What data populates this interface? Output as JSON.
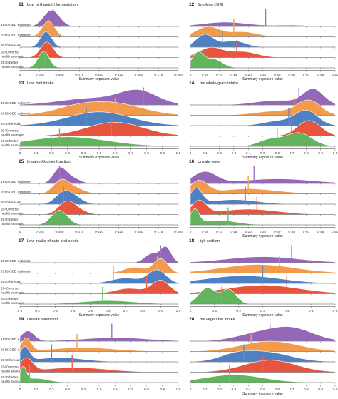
{
  "colors": {
    "1990 GBD estimate": "#9467b8",
    "2016 GBD estimate": "#f39b4d",
    "2040 forecast": "#4f81c2",
    "2040 worse health scenario": "#e8553f",
    "2040 better health scenario": "#62b55c"
  },
  "row_labels": [
    [
      "1990 GBD estimate"
    ],
    [
      "2016 GBD estimate"
    ],
    [
      "2040 forecast"
    ],
    [
      "2040 worse",
      "health scenario"
    ],
    [
      "2040 better",
      "health scenario"
    ]
  ],
  "chart_data": [
    {
      "num": "11",
      "title": "Low birthweight for gestation",
      "type": "ridgeline",
      "xlabel": "Summary exposure value",
      "xticks": [
        "0",
        "0·025",
        "0·050",
        "0·075",
        "0·100",
        "0·125",
        "0·150",
        "0·175",
        "0·200"
      ],
      "xlim": [
        0,
        0.2
      ],
      "x_label_shown": true,
      "series": [
        {
          "name": "1990 GBD estimate",
          "peaks": [
            [
              0.04,
              0.01,
              1
            ]
          ],
          "amp": 0.95,
          "marker": 0.042
        },
        {
          "name": "2016 GBD estimate",
          "peaks": [
            [
              0.036,
              0.008,
              1
            ]
          ],
          "amp": 0.9,
          "marker": 0.036
        },
        {
          "name": "2040 forecast",
          "peaks": [
            [
              0.033,
              0.007,
              1
            ]
          ],
          "amp": 0.9,
          "marker": 0.033
        },
        {
          "name": "2040 worse health scenario",
          "peaks": [
            [
              0.034,
              0.008,
              1
            ]
          ],
          "amp": 0.9,
          "marker": 0.035
        },
        {
          "name": "2040 better health scenario",
          "peaks": [
            [
              0.03,
              0.007,
              1
            ]
          ],
          "amp": 0.95,
          "marker": 0.031
        }
      ]
    },
    {
      "num": "12",
      "title": "Smoking (SIR)",
      "type": "ridgeline",
      "xlabel": "Summary exposure value",
      "xticks": [
        "0",
        "0·05",
        "0·10",
        "0·15",
        "0·20",
        "0·25",
        "0·30",
        "0·35",
        "0·40",
        "0·45",
        "0·50"
      ],
      "xlim": [
        0,
        0.5
      ],
      "x_label_shown": true,
      "series": [
        {
          "name": "1990 GBD estimate",
          "peaks": [
            [
              0.12,
              0.08,
              1
            ],
            [
              0.35,
              0.06,
              0.3
            ]
          ],
          "amp": 0.25,
          "marker": 0.26
        },
        {
          "name": "2016 GBD estimate",
          "peaks": [
            [
              0.06,
              0.04,
              1
            ],
            [
              0.18,
              0.05,
              0.5
            ]
          ],
          "amp": 0.6,
          "marker": 0.15
        },
        {
          "name": "2040 forecast",
          "peaks": [
            [
              0.05,
              0.03,
              1
            ],
            [
              0.15,
              0.04,
              0.5
            ]
          ],
          "amp": 0.75,
          "marker": 0.11
        },
        {
          "name": "2040 worse health scenario",
          "peaks": [
            [
              0.07,
              0.04,
              1
            ],
            [
              0.18,
              0.05,
              0.6
            ]
          ],
          "amp": 0.6,
          "marker": 0.16
        },
        {
          "name": "2040 better health scenario",
          "peaks": [
            [
              0.025,
              0.02,
              1
            ],
            [
              0.08,
              0.03,
              0.6
            ]
          ],
          "amp": 0.95,
          "marker": 0.05
        }
      ]
    },
    {
      "num": "13",
      "title": "Low fruit intake",
      "type": "ridgeline",
      "xlabel": "Summary exposure value",
      "xticks": [
        "0",
        "0·1",
        "0·2",
        "0·3",
        "0·4",
        "0·5",
        "0·6",
        "0·7",
        "0·8",
        "0·9",
        "1·0"
      ],
      "xlim": [
        0,
        1
      ],
      "x_label_shown": true,
      "series": [
        {
          "name": "1990 GBD estimate",
          "peaks": [
            [
              0.75,
              0.12,
              1
            ],
            [
              0.45,
              0.2,
              0.5
            ]
          ],
          "amp": 0.9,
          "marker": 0.78
        },
        {
          "name": "2016 GBD estimate",
          "peaks": [
            [
              0.6,
              0.18,
              1
            ],
            [
              0.35,
              0.15,
              0.6
            ]
          ],
          "amp": 0.8,
          "marker": 0.6
        },
        {
          "name": "2040 forecast",
          "peaks": [
            [
              0.5,
              0.2,
              1
            ]
          ],
          "amp": 0.8,
          "marker": 0.42
        },
        {
          "name": "2040 worse health scenario",
          "peaks": [
            [
              0.6,
              0.18,
              1
            ]
          ],
          "amp": 0.8,
          "marker": 0.58
        },
        {
          "name": "2040 better health scenario",
          "peaks": [
            [
              0.3,
              0.25,
              1
            ]
          ],
          "amp": 0.55,
          "marker": 0.25
        }
      ]
    },
    {
      "num": "14",
      "title": "Low whole-grain intake",
      "type": "ridgeline",
      "xlabel": "Summary exposure value",
      "xticks": [
        "0",
        "0·1",
        "0·2",
        "0·3",
        "0·4",
        "0·5",
        "0·6",
        "0·7",
        "0·8",
        "0·9",
        "1·0"
      ],
      "xlim": [
        0,
        1
      ],
      "x_label_shown": true,
      "series": [
        {
          "name": "1990 GBD estimate",
          "peaks": [
            [
              0.85,
              0.07,
              1
            ],
            [
              0.6,
              0.15,
              0.3
            ]
          ],
          "amp": 0.95,
          "marker": 0.75
        },
        {
          "name": "2016 GBD estimate",
          "peaks": [
            [
              0.82,
              0.08,
              1
            ],
            [
              0.6,
              0.15,
              0.3
            ]
          ],
          "amp": 0.9,
          "marker": 0.72
        },
        {
          "name": "2040 forecast",
          "peaks": [
            [
              0.8,
              0.08,
              1
            ],
            [
              0.6,
              0.1,
              0.3
            ]
          ],
          "amp": 0.9,
          "marker": 0.68
        },
        {
          "name": "2040 worse health scenario",
          "peaks": [
            [
              0.82,
              0.08,
              1
            ]
          ],
          "amp": 0.9,
          "marker": 0.7
        },
        {
          "name": "2040 better health scenario",
          "peaks": [
            [
              0.75,
              0.09,
              1
            ],
            [
              0.55,
              0.08,
              0.5
            ]
          ],
          "amp": 0.8,
          "marker": 0.6
        }
      ]
    },
    {
      "num": "15",
      "title": "Impaired kidney function",
      "type": "ridgeline",
      "xlabel": "Summary exposure value",
      "xticks": [
        "0",
        "0·025",
        "0·050",
        "0·075",
        "0·100",
        "0·125",
        "0·150",
        "0·175",
        "0·200"
      ],
      "xlim": [
        0,
        0.2
      ],
      "x_label_shown": false,
      "series": [
        {
          "name": "1990 GBD estimate",
          "peaks": [
            [
              0.05,
              0.008,
              1
            ],
            [
              0.065,
              0.01,
              0.4
            ]
          ],
          "amp": 0.95,
          "marker": 0.05
        },
        {
          "name": "2016 GBD estimate",
          "peaks": [
            [
              0.052,
              0.01,
              1
            ],
            [
              0.07,
              0.012,
              0.4
            ]
          ],
          "amp": 0.85,
          "marker": 0.052
        },
        {
          "name": "2040 forecast",
          "peaks": [
            [
              0.055,
              0.01,
              1
            ],
            [
              0.07,
              0.01,
              0.5
            ]
          ],
          "amp": 0.8,
          "marker": 0.055
        },
        {
          "name": "2040 worse health scenario",
          "peaks": [
            [
              0.058,
              0.01,
              1
            ],
            [
              0.07,
              0.012,
              0.5
            ]
          ],
          "amp": 0.8,
          "marker": 0.058
        },
        {
          "name": "2040 better health scenario",
          "peaks": [
            [
              0.05,
              0.01,
              1
            ]
          ],
          "amp": 0.85,
          "marker": 0.048
        }
      ]
    },
    {
      "num": "16",
      "title": "Unsafe water",
      "type": "ridgeline",
      "xlabel": "Summary exposure value",
      "xticks": [
        "0",
        "0·05",
        "0·10",
        "0·15",
        "0·20",
        "0·25",
        "0·30",
        "0·35",
        "0·40",
        "0·45",
        "0·50"
      ],
      "xlim": [
        0,
        0.5
      ],
      "x_label_shown": true,
      "series": [
        {
          "name": "1990 GBD estimate",
          "peaks": [
            [
              0.05,
              0.04,
              1
            ],
            [
              0.3,
              0.12,
              0.4
            ]
          ],
          "amp": 0.7,
          "marker": 0.22
        },
        {
          "name": "2016 GBD estimate",
          "peaks": [
            [
              0.03,
              0.03,
              1
            ],
            [
              0.2,
              0.1,
              0.4
            ]
          ],
          "amp": 0.8,
          "marker": 0.2
        },
        {
          "name": "2040 forecast",
          "peaks": [
            [
              0.02,
              0.02,
              1
            ],
            [
              0.15,
              0.08,
              0.3
            ]
          ],
          "amp": 0.95,
          "marker": 0.19
        },
        {
          "name": "2040 worse health scenario",
          "peaks": [
            [
              0.03,
              0.025,
              1
            ],
            [
              0.2,
              0.1,
              0.4
            ]
          ],
          "amp": 0.85,
          "marker": 0.23
        },
        {
          "name": "2040 better health scenario",
          "peaks": [
            [
              0.015,
              0.015,
              1
            ],
            [
              0.1,
              0.06,
              0.3
            ]
          ],
          "amp": 0.95,
          "marker": 0.13
        }
      ]
    },
    {
      "num": "17",
      "title": "Low intake of nuts and seeds",
      "type": "ridgeline",
      "xlabel": "Summary exposure value",
      "xticks": [
        "0·1",
        "0·2",
        "0·3",
        "0·4",
        "0·5",
        "0·6",
        "0·7",
        "0·8",
        "0·9",
        "1·0"
      ],
      "xlim": [
        0.1,
        1
      ],
      "x_label_shown": true,
      "series": [
        {
          "name": "1990 GBD estimate",
          "peaks": [
            [
              0.93,
              0.03,
              1
            ],
            [
              0.85,
              0.04,
              0.6
            ]
          ],
          "amp": 0.95,
          "marker": 0.9
        },
        {
          "name": "2016 GBD estimate",
          "peaks": [
            [
              0.9,
              0.04,
              1
            ],
            [
              0.75,
              0.06,
              0.4
            ]
          ],
          "amp": 0.85,
          "marker": 0.88
        },
        {
          "name": "2040 forecast",
          "peaks": [
            [
              0.88,
              0.05,
              1
            ],
            [
              0.7,
              0.08,
              0.4
            ]
          ],
          "amp": 0.8,
          "marker": 0.63
        },
        {
          "name": "2040 worse health scenario",
          "peaks": [
            [
              0.9,
              0.05,
              1
            ],
            [
              0.72,
              0.08,
              0.4
            ]
          ],
          "amp": 0.8,
          "marker": 0.82
        },
        {
          "name": "2040 better health scenario",
          "peaks": [
            [
              0.6,
              0.15,
              1
            ]
          ],
          "amp": 0.2,
          "marker": 0.57
        }
      ]
    },
    {
      "num": "18",
      "title": "High sodium",
      "type": "ridgeline",
      "xlabel": "Summary exposure value",
      "xticks": [
        "0",
        "0·1",
        "0·2",
        "0·3",
        "0·4",
        "0·5",
        "0·6"
      ],
      "xlim": [
        0,
        0.6
      ],
      "x_label_shown": true,
      "series": [
        {
          "name": "1990 GBD estimate",
          "peaks": [
            [
              0.3,
              0.15,
              1
            ]
          ],
          "amp": 0.35,
          "marker": 0.42
        },
        {
          "name": "2016 GBD estimate",
          "peaks": [
            [
              0.28,
              0.15,
              1
            ]
          ],
          "amp": 0.5,
          "marker": 0.37
        },
        {
          "name": "2040 forecast",
          "peaks": [
            [
              0.22,
              0.15,
              1
            ]
          ],
          "amp": 0.45,
          "marker": 0.3
        },
        {
          "name": "2040 worse health scenario",
          "peaks": [
            [
              0.3,
              0.15,
              1
            ]
          ],
          "amp": 0.5,
          "marker": 0.4
        },
        {
          "name": "2040 better health scenario",
          "peaks": [
            [
              0.07,
              0.035,
              1
            ],
            [
              0.16,
              0.03,
              0.9
            ]
          ],
          "amp": 0.95,
          "marker": 0.13
        }
      ]
    },
    {
      "num": "19",
      "title": "Unsafe sanitation",
      "type": "ridgeline",
      "xlabel": "Summary exposure value",
      "xticks": [
        "0",
        "0·1",
        "0·2",
        "0·3",
        "0·4",
        "0·5",
        "0·6",
        "0·7",
        "0·8",
        "0·9",
        "1·0"
      ],
      "xlim": [
        0,
        1
      ],
      "x_label_shown": false,
      "series": [
        {
          "name": "1990 GBD estimate",
          "peaks": [
            [
              0.05,
              0.04,
              1
            ],
            [
              0.6,
              0.2,
              0.35
            ]
          ],
          "amp": 0.6,
          "marker": 0.58
        },
        {
          "name": "2016 GBD estimate",
          "peaks": [
            [
              0.04,
              0.03,
              1
            ],
            [
              0.4,
              0.2,
              0.3
            ]
          ],
          "amp": 0.8,
          "marker": 0.36
        },
        {
          "name": "2040 forecast",
          "peaks": [
            [
              0.03,
              0.03,
              1
            ],
            [
              0.25,
              0.15,
              0.3
            ]
          ],
          "amp": 0.9,
          "marker": 0.2
        },
        {
          "name": "2040 worse health scenario",
          "peaks": [
            [
              0.04,
              0.04,
              1
            ],
            [
              0.35,
              0.2,
              0.35
            ]
          ],
          "amp": 0.85,
          "marker": 0.33
        },
        {
          "name": "2040 better health scenario",
          "peaks": [
            [
              0.02,
              0.02,
              1
            ],
            [
              0.1,
              0.08,
              0.3
            ]
          ],
          "amp": 0.95,
          "marker": 0.06
        }
      ]
    },
    {
      "num": "20",
      "title": "Low vegetable intake",
      "type": "ridgeline",
      "xlabel": "Summary exposure value",
      "xticks": [
        "0",
        "0·1",
        "0·2",
        "0·3",
        "0·4",
        "0·5",
        "0·6",
        "0·7",
        "0·8",
        "0·9",
        "1·0"
      ],
      "xlim": [
        0,
        1
      ],
      "x_label_shown": true,
      "series": [
        {
          "name": "1990 GBD estimate",
          "peaks": [
            [
              0.7,
              0.15,
              1
            ],
            [
              0.45,
              0.15,
              0.5
            ]
          ],
          "amp": 0.85,
          "marker": 0.55
        },
        {
          "name": "2016 GBD estimate",
          "peaks": [
            [
              0.55,
              0.2,
              1
            ]
          ],
          "amp": 0.6,
          "marker": 0.42
        },
        {
          "name": "2040 forecast",
          "peaks": [
            [
              0.5,
              0.18,
              1
            ],
            [
              0.3,
              0.1,
              0.4
            ]
          ],
          "amp": 0.65,
          "marker": 0.37
        },
        {
          "name": "2040 worse health scenario",
          "peaks": [
            [
              0.55,
              0.18,
              1
            ]
          ],
          "amp": 0.7,
          "marker": 0.5
        },
        {
          "name": "2040 better health scenario",
          "peaks": [
            [
              0.3,
              0.2,
              1
            ]
          ],
          "amp": 0.45,
          "marker": 0.27
        }
      ]
    }
  ]
}
